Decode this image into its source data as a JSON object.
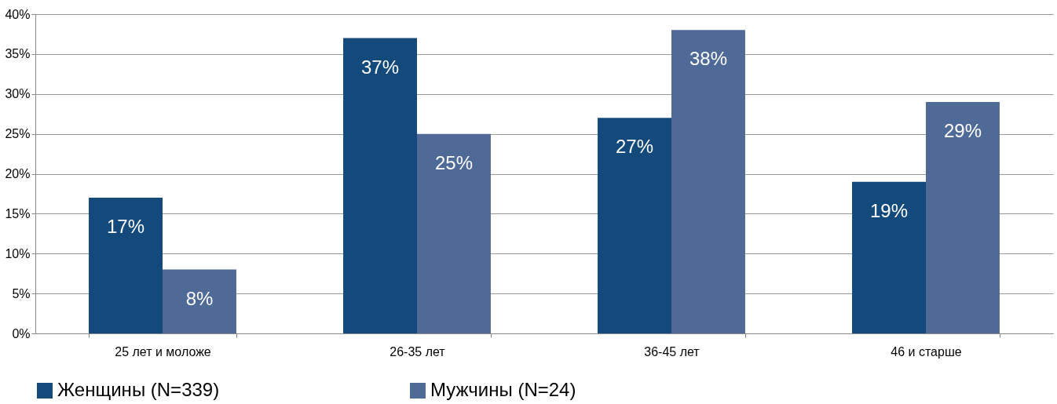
{
  "chart_data": {
    "type": "bar",
    "categories": [
      "25 лет и моложе",
      "26-35 лет",
      "36-45 лет",
      "46 и старше"
    ],
    "series": [
      {
        "name": "Женщины (N=339)",
        "color": "#134a7b",
        "values": [
          17,
          37,
          27,
          19
        ],
        "value_labels": [
          "17%",
          "37%",
          "27%",
          "19%"
        ]
      },
      {
        "name": "Мужчины (N=24)",
        "color": "#506a98",
        "values": [
          8,
          25,
          38,
          29
        ],
        "value_labels": [
          "8%",
          "25%",
          "38%",
          "29%"
        ]
      }
    ],
    "ylim": [
      0,
      40
    ],
    "yticks": [
      {
        "value": 0,
        "label": "0%"
      },
      {
        "value": 5,
        "label": "5%"
      },
      {
        "value": 10,
        "label": "10%"
      },
      {
        "value": 15,
        "label": "15%"
      },
      {
        "value": 20,
        "label": "20%"
      },
      {
        "value": 25,
        "label": "25%"
      },
      {
        "value": 30,
        "label": "30%"
      },
      {
        "value": 35,
        "label": "35%"
      },
      {
        "value": 40,
        "label": "40%"
      }
    ],
    "grid": "y",
    "legend": "bottom"
  }
}
